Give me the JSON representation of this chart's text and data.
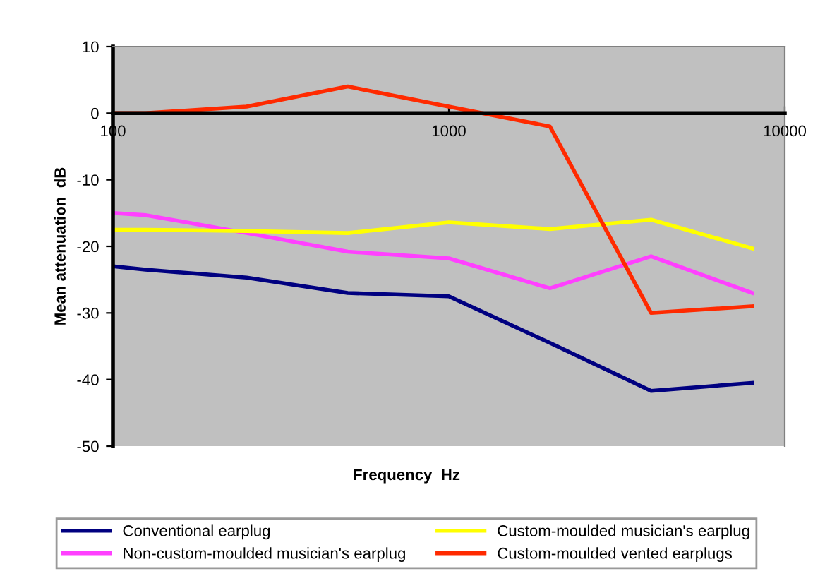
{
  "chart_data": {
    "type": "line",
    "xlabel": "Frequency  Hz",
    "ylabel": "Mean attenuation  dB",
    "x": [
      100,
      125,
      250,
      500,
      1000,
      2000,
      4000,
      8000
    ],
    "series": [
      {
        "name": "Conventional earplug",
        "color": "#000080",
        "values": [
          -23,
          -23.5,
          -24.7,
          -27,
          -27.5,
          -34.5,
          -41.7,
          -40.5
        ]
      },
      {
        "name": "Non-custom-moulded musician's earplug",
        "color": "#ff40ff",
        "values": [
          -15,
          -15.3,
          -18,
          -20.8,
          -21.8,
          -26.3,
          -21.5,
          -27
        ]
      },
      {
        "name": "Custom-moulded musician's earplug",
        "color": "#ffff00",
        "values": [
          -17.5,
          -17.5,
          -17.7,
          -18,
          -16.4,
          -17.4,
          -16,
          -20.3
        ]
      },
      {
        "name": "Custom-moulded vented earplugs",
        "color": "#ff2a00",
        "values": [
          0,
          0,
          1,
          4,
          1,
          -2,
          -30,
          -29
        ]
      }
    ],
    "log": "x",
    "xlim": [
      100,
      10000
    ],
    "xticks": [
      100,
      1000,
      10000
    ],
    "ylim": [
      -50,
      10
    ],
    "yticks": [
      10,
      0,
      -10,
      -20,
      -30,
      -40,
      -50
    ],
    "grid": false,
    "legend": "bottom",
    "marker": "none",
    "line_style": "solid"
  }
}
